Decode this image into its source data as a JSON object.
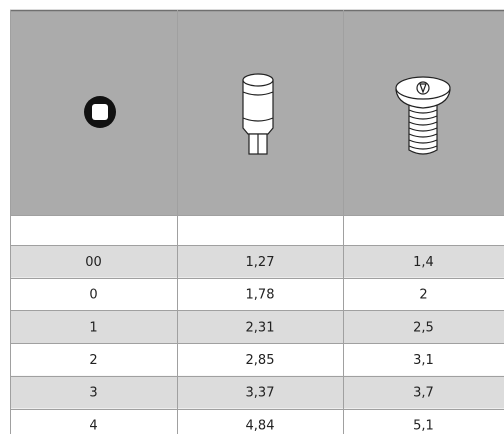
{
  "table": {
    "rows": [
      [
        "00",
        "1,27",
        "1,4"
      ],
      [
        "0",
        "1,78",
        "2"
      ],
      [
        "1",
        "2,31",
        "2,5"
      ],
      [
        "2",
        "2,85",
        "3,1"
      ],
      [
        "3",
        "3,37",
        "3,7"
      ],
      [
        "4",
        "4,84",
        "5,1"
      ]
    ]
  }
}
